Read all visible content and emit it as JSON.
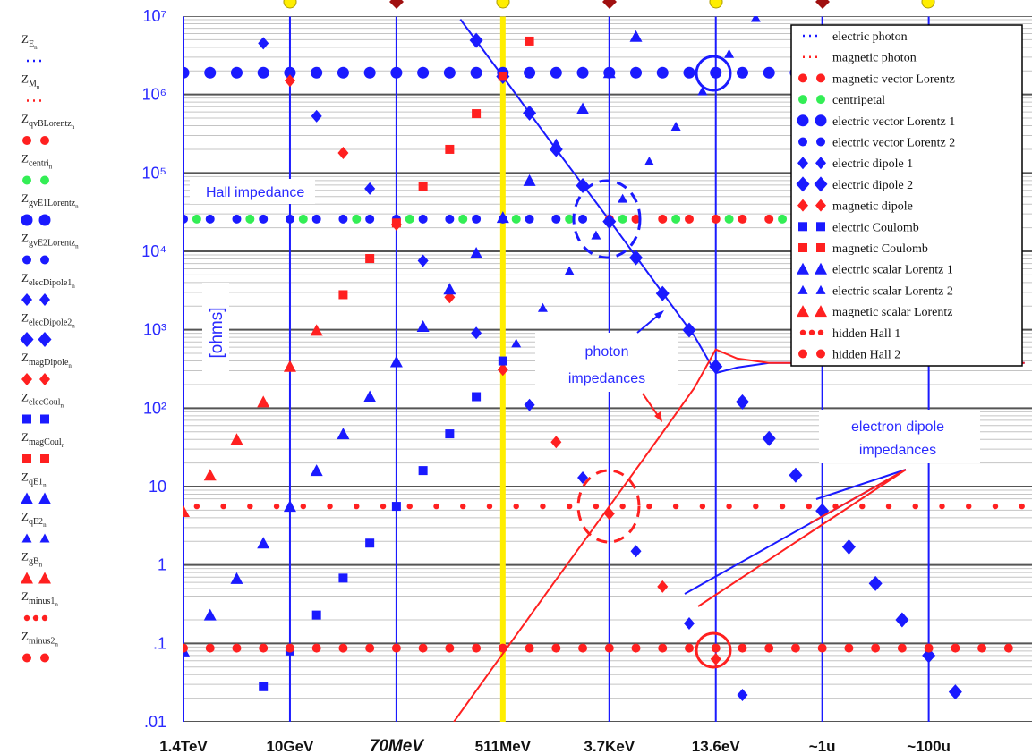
{
  "chart_data": {
    "type": "scatter",
    "ylog": true,
    "xlim": [
      0,
      7.97
    ],
    "ylim": [
      0.01,
      10000000
    ],
    "yticks": [
      {
        "value": 0.01,
        "label": ".01"
      },
      {
        "value": 0.1,
        "label": ".1"
      },
      1,
      10,
      {
        "value": 100,
        "label": "10²"
      },
      {
        "value": 1000,
        "label": "10³"
      },
      {
        "value": 10000,
        "label": "10⁴"
      },
      {
        "value": 100000,
        "label": "10⁵"
      },
      {
        "value": 1000000,
        "label": "10⁶"
      },
      {
        "value": 10000000,
        "label": "10⁷"
      }
    ],
    "xticks": [
      {
        "value": 0,
        "label": "1.4TeV"
      },
      {
        "value": 1,
        "label": "10GeV"
      },
      {
        "value": 2,
        "label": "70MeV"
      },
      {
        "value": 3,
        "label": "511MeV"
      },
      {
        "value": 4,
        "label": "3.7KeV"
      },
      {
        "value": 5,
        "label": "13.6eV"
      },
      {
        "value": 6,
        "label": "~1u"
      },
      {
        "value": 7,
        "label": "~100u"
      }
    ],
    "emphasized_xtick": 2,
    "grid": true,
    "minor_grid": true,
    "xgrid_color": "#1a1aff",
    "highlight_xtick": 3,
    "highlight_color": "#ffee00",
    "legend": "upper right",
    "annotations": {
      "hall": "Hall impedance",
      "unit": "[ohms]",
      "photon": [
        "photon",
        "impedances"
      ],
      "dipole": [
        "electron dipole",
        "impedances"
      ]
    },
    "series": [
      {
        "name": "electric photon",
        "color": "#1a1aff",
        "marker": "line",
        "symbol": {
          "main": "Z",
          "sub": "E",
          "subsub": "n"
        },
        "x": [
          2.6,
          3,
          3.5,
          4,
          4.5,
          4.8,
          5,
          5.2,
          5.5,
          6,
          7,
          7.9
        ],
        "values": [
          9100000,
          1700000,
          200000,
          25000,
          2950,
          830,
          280,
          330,
          376.7,
          376.7,
          376.7,
          376.7
        ]
      },
      {
        "name": "magnetic photon",
        "color": "#ff2020",
        "marker": "line",
        "symbol": {
          "main": "Z",
          "sub": "M",
          "subsub": "n"
        },
        "x": [
          2.54,
          3,
          3.5,
          4,
          4.5,
          4.8,
          5,
          5.2,
          5.5,
          6,
          7,
          7.9
        ],
        "values": [
          0.01,
          0.074,
          0.65,
          5.6,
          49,
          182,
          560,
          430,
          376.7,
          376.7,
          376.7,
          376.7
        ]
      },
      {
        "name": "magnetic vector Lorentz",
        "color": "#ff2020",
        "marker": "dot",
        "symbol": {
          "main": "Z",
          "sub": "qvBLorentz",
          "subsub": "n"
        },
        "x": [
          4,
          4.25,
          4.5,
          4.75,
          5,
          5.25,
          5.5,
          5.75,
          6,
          6.25,
          6.5,
          6.75,
          7,
          7.25,
          7.5,
          7.75
        ],
        "values": [
          25813,
          25813,
          25813,
          25813,
          25813,
          25813,
          25813,
          25813,
          25813,
          25813,
          25813,
          25813,
          25813,
          25813,
          25813,
          25813
        ]
      },
      {
        "name": "centripetal",
        "color": "#33ee55",
        "marker": "dot",
        "symbol": {
          "main": "Z",
          "sub": "centri",
          "subsub": "n"
        },
        "x": [
          0.125,
          0.625,
          1.125,
          1.625,
          2.125,
          2.625,
          3.125,
          3.625,
          4.125,
          4.625,
          5.125,
          5.625,
          6.125,
          6.625,
          7.125,
          7.625
        ],
        "values": [
          25813,
          25813,
          25813,
          25813,
          25813,
          25813,
          25813,
          25813,
          25813,
          25813,
          25813,
          25813,
          25813,
          25813,
          25813,
          25813
        ]
      },
      {
        "name": "electric vector Lorentz 1",
        "color": "#1a1aff",
        "marker": "dot-big",
        "symbol": {
          "main": "Z",
          "sub": "gvE1Lorentz",
          "subsub": "n"
        },
        "x": [
          0,
          0.25,
          0.5,
          0.75,
          1,
          1.25,
          1.5,
          1.75,
          2,
          2.25,
          2.5,
          2.75,
          3,
          3.25,
          3.5,
          3.75,
          4,
          4.25,
          4.5,
          4.75,
          5,
          5.25,
          5.5,
          5.75,
          6,
          6.25,
          6.5,
          6.75,
          7,
          7.25,
          7.5,
          7.75
        ],
        "values": [
          1900000,
          1900000,
          1900000,
          1900000,
          1900000,
          1900000,
          1900000,
          1900000,
          1900000,
          1900000,
          1900000,
          1900000,
          1900000,
          1900000,
          1900000,
          1900000,
          1900000,
          1900000,
          1900000,
          1900000,
          1900000,
          1900000,
          1900000,
          1900000,
          1900000,
          1900000,
          1900000,
          1900000,
          1900000,
          1900000,
          1900000,
          1900000
        ]
      },
      {
        "name": "electric vector Lorentz 2",
        "color": "#1a1aff",
        "marker": "dot",
        "symbol": {
          "main": "Z",
          "sub": "gvE2Lorentz",
          "subsub": "n"
        },
        "x": [
          0,
          0.25,
          0.5,
          0.75,
          1,
          1.25,
          1.5,
          1.75,
          2,
          2.25,
          2.5,
          2.75,
          3,
          3.25,
          3.5,
          3.75
        ],
        "values": [
          25813,
          25813,
          25813,
          25813,
          25813,
          25813,
          25813,
          25813,
          25813,
          25813,
          25813,
          25813,
          25813,
          25813,
          25813,
          25813
        ]
      },
      {
        "name": "electric dipole 1",
        "color": "#1a1aff",
        "marker": "diamond",
        "symbol": {
          "main": "Z",
          "sub": "elecDipole1",
          "subsub": "n"
        },
        "x": [
          0.75,
          1.25,
          1.75,
          2.25,
          2.75,
          3.25,
          3.75,
          4.25,
          4.75,
          5.25
        ],
        "values": [
          4500000,
          530000,
          63000,
          7600,
          910,
          110,
          13,
          1.5,
          0.18,
          0.022
        ]
      },
      {
        "name": "electric dipole 2",
        "color": "#1a1aff",
        "marker": "diamond-big",
        "symbol": {
          "main": "Z",
          "sub": "elecDipole2",
          "subsub": "n"
        },
        "x": [
          2.75,
          3,
          3.25,
          3.5,
          3.75,
          4,
          4.25,
          4.5,
          4.75,
          5,
          5.25,
          5.5,
          5.75,
          6,
          6.25,
          6.5,
          6.75,
          7,
          7.25
        ],
        "values": [
          4900000,
          1700000,
          580000,
          200000,
          69000,
          24000,
          8300,
          2900,
          990,
          340,
          120,
          41,
          14,
          4.9,
          1.7,
          0.58,
          0.2,
          0.07,
          0.024
        ]
      },
      {
        "name": "magnetic dipole",
        "color": "#ff2020",
        "marker": "diamond",
        "symbol": {
          "main": "Z",
          "sub": "magDipole",
          "subsub": "n"
        },
        "x": [
          1,
          1.5,
          2,
          2.5,
          3,
          3.5,
          4,
          4.5,
          5
        ],
        "values": [
          1500000,
          180000,
          22000,
          2600,
          310,
          37,
          4.5,
          0.53,
          0.063
        ]
      },
      {
        "name": "electric Coulomb",
        "color": "#1a1aff",
        "marker": "square",
        "symbol": {
          "main": "Z",
          "sub": "elecCoul",
          "subsub": "n"
        },
        "x": [
          0.75,
          1,
          1.25,
          1.5,
          1.75,
          2,
          2.25,
          2.5,
          2.75,
          3
        ],
        "values": [
          0.028,
          0.08,
          0.23,
          0.68,
          1.9,
          5.6,
          16,
          47,
          140,
          400
        ]
      },
      {
        "name": "magnetic Coulomb",
        "color": "#ff2020",
        "marker": "square",
        "symbol": {
          "main": "Z",
          "sub": "magCoul",
          "subsub": "n"
        },
        "x": [
          1.5,
          1.75,
          2,
          2.25,
          2.5,
          2.75,
          3,
          3.25
        ],
        "values": [
          2800,
          8100,
          23000,
          68000,
          200000,
          570000,
          1700000,
          4800000
        ]
      },
      {
        "name": "electric scalar Lorentz 1",
        "color": "#1a1aff",
        "marker": "triangle",
        "symbol": {
          "main": "Z",
          "sub": "qE1",
          "subsub": "n"
        },
        "x": [
          0,
          0.25,
          0.5,
          0.75,
          1,
          1.25,
          1.5,
          1.75,
          2,
          2.25,
          2.5,
          2.75,
          3,
          3.25,
          3.5,
          3.75,
          4,
          4.25
        ],
        "values": [
          0.08,
          0.23,
          0.67,
          1.9,
          5.6,
          16,
          47,
          140,
          390,
          1100,
          3300,
          9500,
          27000,
          80000,
          230000,
          660000,
          1900000,
          5500000
        ]
      },
      {
        "name": "electric scalar Lorentz 2",
        "color": "#1a1aff",
        "marker": "triangle-small",
        "symbol": {
          "main": "Z",
          "sub": "qE2",
          "subsub": "n"
        },
        "x": [
          3.125,
          3.375,
          3.625,
          3.875,
          4.125,
          4.375,
          4.625,
          4.875,
          5.125,
          5.375
        ],
        "values": [
          670,
          1900,
          5600,
          16000,
          47000,
          140000,
          390000,
          1100000,
          3300000,
          9500000
        ]
      },
      {
        "name": "magnetic scalar Lorentz",
        "color": "#ff2020",
        "marker": "triangle",
        "symbol": {
          "main": "Z",
          "sub": "gB",
          "subsub": "n"
        },
        "x": [
          0,
          0.25,
          0.5,
          0.75,
          1,
          1.25
        ],
        "values": [
          4.8,
          14,
          40,
          120,
          340,
          980
        ]
      },
      {
        "name": "hidden Hall 1",
        "color": "#ff2020",
        "marker": "dot-small",
        "symbol": {
          "main": "Z",
          "sub": "minus1",
          "subsub": "n"
        },
        "x": [
          0.125,
          0.375,
          0.625,
          0.875,
          1.125,
          1.375,
          1.625,
          1.875,
          2.125,
          2.375,
          2.625,
          2.875,
          3.125,
          3.375,
          3.625,
          3.875,
          4.125,
          4.375,
          4.625,
          4.875,
          5.125,
          5.375,
          5.625,
          5.875,
          6.125,
          6.375,
          6.625,
          6.875,
          7.125,
          7.375,
          7.625,
          7.875
        ],
        "values": [
          5.6,
          5.6,
          5.6,
          5.6,
          5.6,
          5.6,
          5.6,
          5.6,
          5.6,
          5.6,
          5.6,
          5.6,
          5.6,
          5.6,
          5.6,
          5.6,
          5.6,
          5.6,
          5.6,
          5.6,
          5.6,
          5.6,
          5.6,
          5.6,
          5.6,
          5.6,
          5.6,
          5.6,
          5.6,
          5.6,
          5.6,
          5.6
        ]
      },
      {
        "name": "hidden Hall 2",
        "color": "#ff2020",
        "marker": "dot",
        "symbol": {
          "main": "Z",
          "sub": "minus2",
          "subsub": "n"
        },
        "x": [
          0,
          0.25,
          0.5,
          0.75,
          1,
          1.25,
          1.5,
          1.75,
          2,
          2.25,
          2.5,
          2.75,
          3,
          3.25,
          3.5,
          3.75,
          4,
          4.25,
          4.5,
          4.75,
          5,
          5.25,
          5.5,
          5.75,
          6,
          6.25,
          6.5,
          6.75,
          7,
          7.25,
          7.5,
          7.75
        ],
        "values": [
          0.087,
          0.087,
          0.087,
          0.087,
          0.087,
          0.087,
          0.087,
          0.087,
          0.087,
          0.087,
          0.087,
          0.087,
          0.087,
          0.087,
          0.087,
          0.087,
          0.087,
          0.087,
          0.087,
          0.087,
          0.087,
          0.087,
          0.087,
          0.087,
          0.087,
          0.087,
          0.087,
          0.087,
          0.087,
          0.087,
          0.087,
          0.087
        ]
      }
    ]
  }
}
